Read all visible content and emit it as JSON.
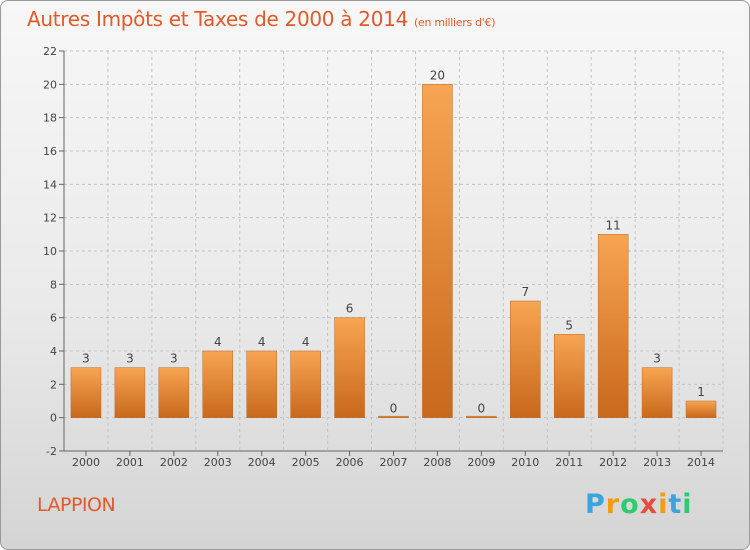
{
  "title": "Autres Impôts et Taxes de 2000 à 2014",
  "subtitle": "(en milliers d'€)",
  "city": "LAPPION",
  "brand": {
    "letters": [
      "P",
      "r",
      "o",
      "x",
      "i",
      "t",
      "i"
    ],
    "colors": [
      "#3aa5dc",
      "#f39c12",
      "#2ecc71",
      "#e74c3c",
      "#f39c12",
      "#3aa5dc",
      "#2ecc71"
    ]
  },
  "colors": {
    "bar_light": "#f7a552",
    "bar_dark": "#c8681c",
    "accent": "#e05a2a"
  },
  "chart_data": {
    "type": "bar",
    "categories": [
      "2000",
      "2001",
      "2002",
      "2003",
      "2004",
      "2005",
      "2006",
      "2007",
      "2008",
      "2009",
      "2010",
      "2011",
      "2012",
      "2013",
      "2014"
    ],
    "values": [
      3,
      3,
      3,
      4,
      4,
      4,
      6,
      0,
      20,
      0,
      7,
      5,
      11,
      3,
      1
    ],
    "data_labels": [
      "3",
      "3",
      "3",
      "4",
      "4",
      "4",
      "6",
      "0",
      "20",
      "0",
      "7",
      "5",
      "11",
      "3",
      "1"
    ],
    "yticks": [
      "-2",
      "0",
      "2",
      "4",
      "6",
      "8",
      "10",
      "12",
      "14",
      "16",
      "18",
      "20",
      "22"
    ],
    "ytick_values": [
      -2,
      0,
      2,
      4,
      6,
      8,
      10,
      12,
      14,
      16,
      18,
      20,
      22
    ],
    "ylim": [
      -2,
      22
    ],
    "grid": true,
    "legend": "none"
  }
}
